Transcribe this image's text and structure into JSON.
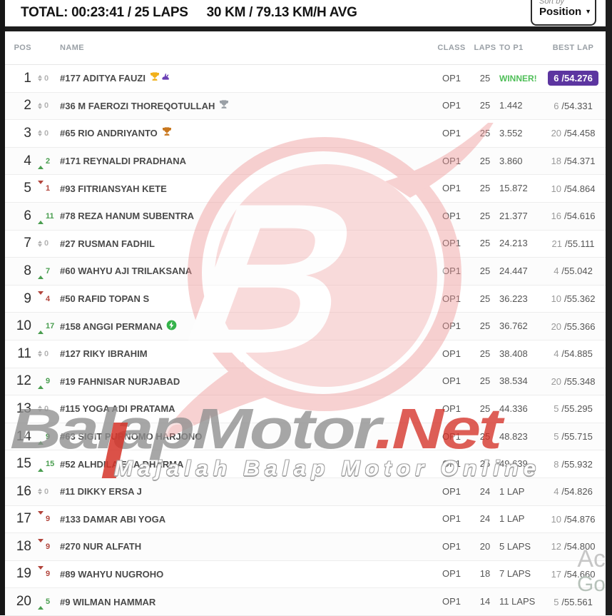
{
  "header": {
    "total_label": "TOTAL: 00:23:41 / 25 LAPS",
    "avg_label": "30 KM / 79.13 KM/H AVG",
    "sort_by_label": "Sort by",
    "sort_value": "Position",
    "sort_caret_icon": "chevron-down-icon"
  },
  "table": {
    "columns": {
      "pos": "POS",
      "name": "NAME",
      "class": "CLASS",
      "laps": "LAPS",
      "to_p1": "TO P1",
      "best_lap": "BEST LAP"
    }
  },
  "rows": [
    {
      "pos": "1",
      "change": "0",
      "change_dir": "none",
      "name": "#177 ADITYA FAUZI",
      "icons": [
        "trophy-gold",
        "rabbit"
      ],
      "class": "OP1",
      "laps": "25",
      "to_p1": "WINNER!",
      "winner": true,
      "best_lap_lap": "6",
      "best_lap_time": "/54.276",
      "best_highlight": true
    },
    {
      "pos": "2",
      "change": "0",
      "change_dir": "none",
      "name": "#36 M FAEROZI THOREQOTULLAH",
      "icons": [
        "trophy-silver"
      ],
      "class": "OP1",
      "laps": "25",
      "to_p1": "1.442",
      "winner": false,
      "best_lap_lap": "6",
      "best_lap_time": "/54.331",
      "best_highlight": false
    },
    {
      "pos": "3",
      "change": "0",
      "change_dir": "none",
      "name": "#65 RIO ANDRIYANTO",
      "icons": [
        "trophy-bronze"
      ],
      "class": "OP1",
      "laps": "25",
      "to_p1": "3.552",
      "winner": false,
      "best_lap_lap": "20",
      "best_lap_time": "/54.458",
      "best_highlight": false
    },
    {
      "pos": "4",
      "change": "2",
      "change_dir": "up",
      "name": "#171 REYNALDI PRADHANA",
      "icons": [],
      "class": "OP1",
      "laps": "25",
      "to_p1": "3.860",
      "winner": false,
      "best_lap_lap": "18",
      "best_lap_time": "/54.371",
      "best_highlight": false
    },
    {
      "pos": "5",
      "change": "1",
      "change_dir": "down",
      "name": "#93 FITRIANSYAH KETE",
      "icons": [],
      "class": "OP1",
      "laps": "25",
      "to_p1": "15.872",
      "winner": false,
      "best_lap_lap": "10",
      "best_lap_time": "/54.864",
      "best_highlight": false
    },
    {
      "pos": "6",
      "change": "11",
      "change_dir": "up",
      "name": "#78 REZA HANUM SUBENTRA",
      "icons": [],
      "class": "OP1",
      "laps": "25",
      "to_p1": "21.377",
      "winner": false,
      "best_lap_lap": "16",
      "best_lap_time": "/54.616",
      "best_highlight": false
    },
    {
      "pos": "7",
      "change": "0",
      "change_dir": "none",
      "name": "#27 RUSMAN FADHIL",
      "icons": [],
      "class": "OP1",
      "laps": "25",
      "to_p1": "24.213",
      "winner": false,
      "best_lap_lap": "21",
      "best_lap_time": "/55.111",
      "best_highlight": false
    },
    {
      "pos": "8",
      "change": "7",
      "change_dir": "up",
      "name": "#60 WAHYU AJI TRILAKSANA",
      "icons": [],
      "class": "OP1",
      "laps": "25",
      "to_p1": "24.447",
      "winner": false,
      "best_lap_lap": "4",
      "best_lap_time": "/55.042",
      "best_highlight": false
    },
    {
      "pos": "9",
      "change": "4",
      "change_dir": "down",
      "name": "#50 RAFID TOPAN S",
      "icons": [],
      "class": "OP1",
      "laps": "25",
      "to_p1": "36.223",
      "winner": false,
      "best_lap_lap": "10",
      "best_lap_time": "/55.362",
      "best_highlight": false
    },
    {
      "pos": "10",
      "change": "17",
      "change_dir": "up",
      "name": "#158 ANGGI PERMANA",
      "icons": [
        "lightning"
      ],
      "class": "OP1",
      "laps": "25",
      "to_p1": "36.762",
      "winner": false,
      "best_lap_lap": "20",
      "best_lap_time": "/55.366",
      "best_highlight": false
    },
    {
      "pos": "11",
      "change": "0",
      "change_dir": "none",
      "name": "#127 RIKY IBRAHIM",
      "icons": [],
      "class": "OP1",
      "laps": "25",
      "to_p1": "38.408",
      "winner": false,
      "best_lap_lap": "4",
      "best_lap_time": "/54.885",
      "best_highlight": false
    },
    {
      "pos": "12",
      "change": "9",
      "change_dir": "up",
      "name": "#19 FAHNISAR NURJABAD",
      "icons": [],
      "class": "OP1",
      "laps": "25",
      "to_p1": "38.534",
      "winner": false,
      "best_lap_lap": "20",
      "best_lap_time": "/55.348",
      "best_highlight": false
    },
    {
      "pos": "13",
      "change": "0",
      "change_dir": "none",
      "name": "#115 YOGA ADI PRATAMA",
      "icons": [],
      "class": "OP1",
      "laps": "25",
      "to_p1": "44.336",
      "winner": false,
      "best_lap_lap": "5",
      "best_lap_time": "/55.295",
      "best_highlight": false
    },
    {
      "pos": "14",
      "change": "9",
      "change_dir": "up",
      "name": "#63 SIGIT PURNOMO HARJONO",
      "icons": [],
      "class": "OP1",
      "laps": "25",
      "to_p1": "48.823",
      "winner": false,
      "best_lap_lap": "5",
      "best_lap_time": "/55.715",
      "best_highlight": false
    },
    {
      "pos": "15",
      "change": "15",
      "change_dir": "up",
      "name": "#52 ALHDILA EKA DHARMA",
      "icons": [],
      "class": "OP1",
      "laps": "25",
      "to_p1": "49.639",
      "winner": false,
      "best_lap_lap": "8",
      "best_lap_time": "/55.932",
      "best_highlight": false
    },
    {
      "pos": "16",
      "change": "0",
      "change_dir": "none",
      "name": "#11 DIKKY ERSA J",
      "icons": [],
      "class": "OP1",
      "laps": "24",
      "to_p1": "1 LAP",
      "winner": false,
      "best_lap_lap": "4",
      "best_lap_time": "/54.826",
      "best_highlight": false
    },
    {
      "pos": "17",
      "change": "9",
      "change_dir": "down",
      "name": "#133 DAMAR ABI YOGA",
      "icons": [],
      "class": "OP1",
      "laps": "24",
      "to_p1": "1 LAP",
      "winner": false,
      "best_lap_lap": "10",
      "best_lap_time": "/54.876",
      "best_highlight": false
    },
    {
      "pos": "18",
      "change": "9",
      "change_dir": "down",
      "name": "#270 NUR ALFATH",
      "icons": [],
      "class": "OP1",
      "laps": "20",
      "to_p1": "5 LAPS",
      "winner": false,
      "best_lap_lap": "12",
      "best_lap_time": "/54.800",
      "best_highlight": false
    },
    {
      "pos": "19",
      "change": "9",
      "change_dir": "down",
      "name": "#89 WAHYU NUGROHO",
      "icons": [],
      "class": "OP1",
      "laps": "18",
      "to_p1": "7 LAPS",
      "winner": false,
      "best_lap_lap": "17",
      "best_lap_time": "/54.660",
      "best_highlight": false
    },
    {
      "pos": "20",
      "change": "5",
      "change_dir": "up",
      "name": "#9 WILMAN HAMMAR",
      "icons": [],
      "class": "OP1",
      "laps": "14",
      "to_p1": "11 LAPS",
      "winner": false,
      "best_lap_lap": "5",
      "best_lap_time": "/55.561",
      "best_highlight": false
    }
  ],
  "watermark": {
    "brand_gray": "BalapMotor",
    "brand_red": ".Net",
    "tagline": "Majalah Balap Motor Online",
    "logo_letter": "B",
    "clipped_text_1": "Ac",
    "clipped_text_2": "Go"
  },
  "colors": {
    "winner_green": "#4fbf58",
    "up_green": "#4a9e50",
    "down_red": "#b2453c",
    "best_lap_badge_purple": "#5c35a0",
    "brand_red": "#d53228",
    "brand_gray": "#8f8f8f"
  }
}
